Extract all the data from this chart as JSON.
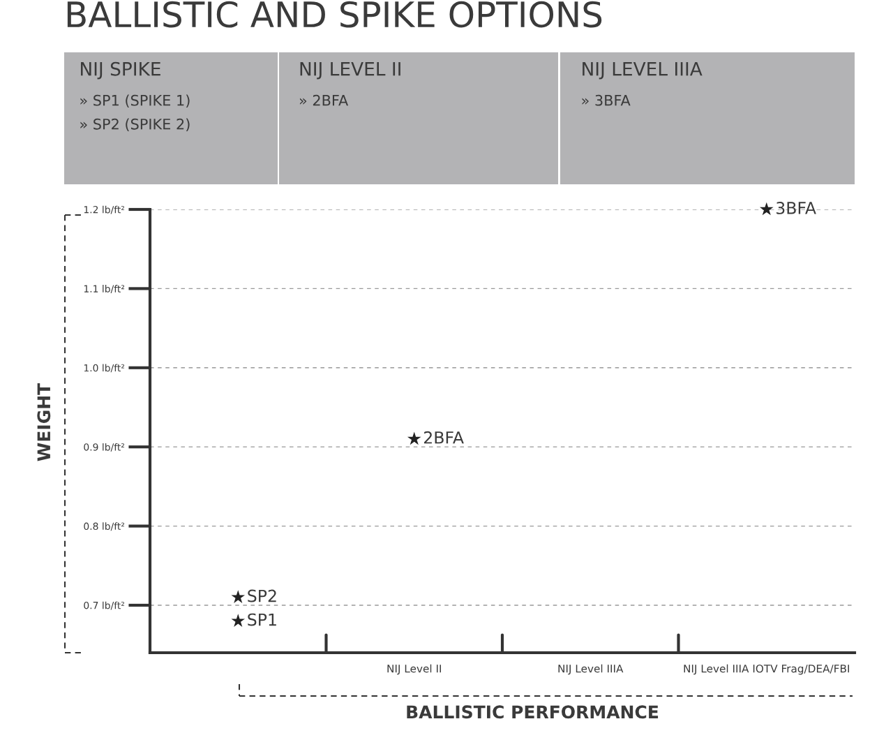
{
  "chart_data": [
    {
      "type": "other",
      "title": "NIJ SPIKE",
      "annotations": [
        "» SP1 (SPIKE 1)",
        "» SP2 (SPIKE 2)"
      ],
      "color": "#b3b3b5"
    },
    {
      "type": "other",
      "title": "NIJ LEVEL II",
      "annotations": [
        "» 2BFA"
      ],
      "color": "#b3b3b5"
    },
    {
      "type": "other",
      "title": "NIJ LEVEL IIIA",
      "annotations": [
        "» 3BFA"
      ],
      "color": "#b3b3b5"
    },
    {
      "type": "scatter",
      "title": "BALLISTIC AND SPIKE OPTIONS",
      "xlabel": "BALLISTIC PERFORMANCE",
      "ylabel": "WEIGHT",
      "categories": [
        null,
        "NIJ Level II",
        "NIJ Level IIIA",
        "NIJ Level IIIA IOTV Frag/DEA/FBI"
      ],
      "series": [
        {
          "name": "SP1",
          "color": "#222222",
          "values": [
            0.68,
            null,
            null,
            null
          ]
        },
        {
          "name": "SP2",
          "color": "#222222",
          "values": [
            0.71,
            null,
            null,
            null
          ]
        },
        {
          "name": "2BFA",
          "color": "#222222",
          "values": [
            null,
            0.91,
            null,
            null
          ]
        },
        {
          "name": "3BFA",
          "color": "#222222",
          "values": [
            null,
            null,
            null,
            1.2
          ]
        }
      ],
      "ylim": [
        0.64,
        1.2
      ],
      "yticks": [
        {
          "value": 0.7,
          "label": "0.7 lb/ft²"
        },
        {
          "value": 0.8,
          "label": "0.8 lb/ft²"
        },
        {
          "value": 0.9,
          "label": "0.9 lb/ft²"
        },
        {
          "value": 1.0,
          "label": "1.0 lb/ft²"
        },
        {
          "value": 1.1,
          "label": "1.1 lb/ft²"
        },
        {
          "value": 1.2,
          "label": "1.2 lb/ft²"
        }
      ],
      "grid": "y",
      "marker": "star"
    }
  ]
}
